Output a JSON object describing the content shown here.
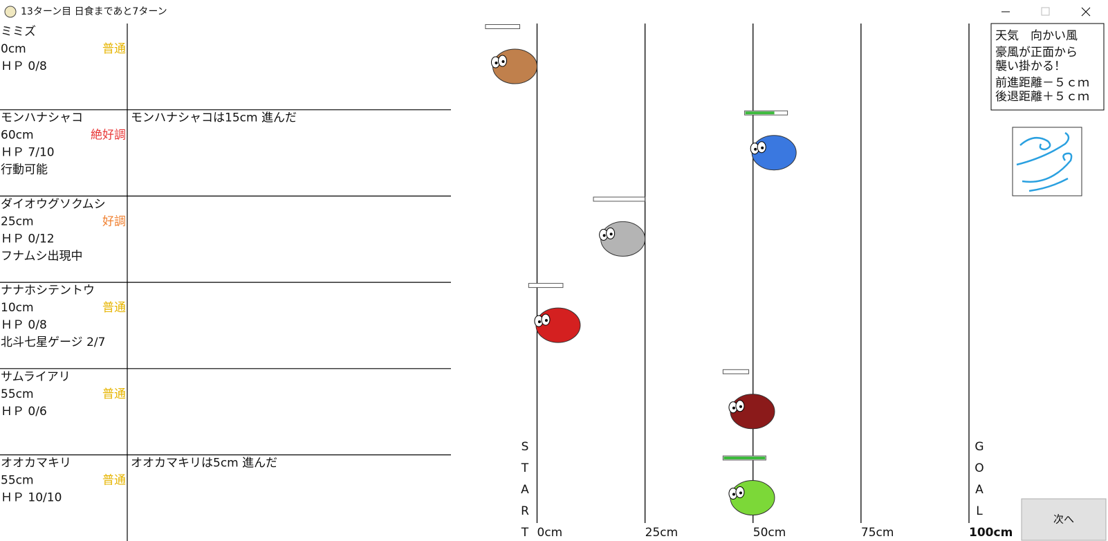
{
  "window": {
    "title": "13ターン目 日食まであと7ターン"
  },
  "racers": [
    {
      "name": "ミミズ",
      "distance": {
        "value": 0,
        "label": "0cm"
      },
      "condition": "普通",
      "condition_color": "#e6b400",
      "hp": {
        "value": 0,
        "max": 8,
        "label": "ＨＰ 0/8"
      },
      "color": "#c0804c"
    },
    {
      "name": "モンハナシャコ",
      "distance": {
        "value": 60,
        "label": "60cm"
      },
      "condition": "絶好調",
      "condition_color": "#e83838",
      "hp": {
        "value": 7,
        "max": 10,
        "label": "ＨＰ 7/10"
      },
      "status": "行動可能",
      "log": "モンハナシャコは15cm 進んだ",
      "color": "#3a78e0"
    },
    {
      "name": "ダイオウグソクムシ",
      "distance": {
        "value": 25,
        "label": "25cm"
      },
      "condition": "好調",
      "condition_color": "#f08030",
      "hp": {
        "value": 0,
        "max": 12,
        "label": "ＨＰ 0/12"
      },
      "status": "フナムシ出現中",
      "color": "#b4b4b4"
    },
    {
      "name": "ナナホシテントウ",
      "distance": {
        "value": 10,
        "label": "10cm"
      },
      "condition": "普通",
      "condition_color": "#e6b400",
      "hp": {
        "value": 0,
        "max": 8,
        "label": "ＨＰ 0/8"
      },
      "status": "北斗七星ゲージ 2/7",
      "color": "#d42020"
    },
    {
      "name": "サムライアリ",
      "distance": {
        "value": 55,
        "label": "55cm"
      },
      "condition": "普通",
      "condition_color": "#e6b400",
      "hp": {
        "value": 0,
        "max": 6,
        "label": "ＨＰ 0/6"
      },
      "color": "#8b1a1a"
    },
    {
      "name": "オオカマキリ",
      "distance": {
        "value": 55,
        "label": "55cm"
      },
      "condition": "普通",
      "condition_color": "#e6b400",
      "hp": {
        "value": 10,
        "max": 10,
        "label": "ＨＰ 10/10"
      },
      "log": "オオカマキリは5cm 進んだ",
      "color": "#7cd838"
    }
  ],
  "track": {
    "ticks": [
      {
        "value": 0,
        "label": "0cm"
      },
      {
        "value": 25,
        "label": "25cm"
      },
      {
        "value": 50,
        "label": "50cm"
      },
      {
        "value": 75,
        "label": "75cm"
      },
      {
        "value": 100,
        "label": "100cm"
      }
    ],
    "start_label": [
      "S",
      "T",
      "A",
      "R",
      "T"
    ],
    "goal_label": [
      "G",
      "O",
      "A",
      "L"
    ]
  },
  "weather": {
    "title": "天気　向かい風",
    "lines": [
      "豪風が正面から",
      "襲い掛かる！",
      "前進距離－５ｃｍ",
      "後退距離＋５ｃｍ"
    ]
  },
  "next_button": "次へ"
}
